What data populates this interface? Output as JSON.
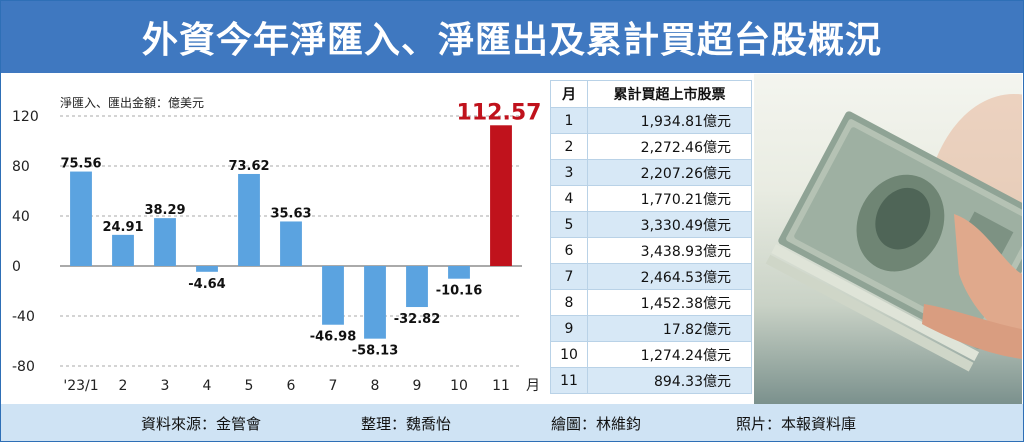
{
  "title": "外資今年淨匯入、淨匯出及累計買超台股概況",
  "chart_data": {
    "type": "bar",
    "unit_label": "淨匯入、匯出金額：億美元",
    "categories": [
      "'23/1",
      "2",
      "3",
      "4",
      "5",
      "6",
      "7",
      "8",
      "9",
      "10",
      "11"
    ],
    "x_suffix": "月",
    "values": [
      75.56,
      24.91,
      38.29,
      -4.64,
      73.62,
      35.63,
      -46.98,
      -58.13,
      -32.82,
      -10.16,
      112.57
    ],
    "value_labels": [
      "75.56",
      "24.91",
      "38.29",
      "-4.64",
      "73.62",
      "35.63",
      "-46.98",
      "-58.13",
      "-32.82",
      "-10.16",
      "112.57"
    ],
    "yticks": [
      120,
      80,
      40,
      0,
      -40,
      -80
    ],
    "ylim": [
      -80,
      120
    ],
    "grid": "dashed horizontal",
    "bar_color": "#5ba3e0",
    "highlight_color": "#c0121c",
    "highlight_index": 10
  },
  "table": {
    "headers": [
      "月",
      "累計買超上市股票"
    ],
    "rows": [
      {
        "month": "1",
        "value": "1,934.81億元"
      },
      {
        "month": "2",
        "value": "2,272.46億元"
      },
      {
        "month": "3",
        "value": "2,207.26億元"
      },
      {
        "month": "4",
        "value": "1,770.21億元"
      },
      {
        "month": "5",
        "value": "3,330.49億元"
      },
      {
        "month": "6",
        "value": "3,438.93億元"
      },
      {
        "month": "7",
        "value": "2,464.53億元"
      },
      {
        "month": "8",
        "value": "1,452.38億元"
      },
      {
        "month": "9",
        "value": "17.82億元"
      },
      {
        "month": "10",
        "value": "1,274.24億元"
      },
      {
        "month": "11",
        "value": "894.33億元"
      }
    ]
  },
  "photo": {
    "subject": "us-dollar-banknotes-photo"
  },
  "footer": {
    "source": "資料來源：金管會",
    "editor": "整理：魏喬怡",
    "artist": "繪圖：林維鈞",
    "photo_credit": "照片：本報資料庫"
  },
  "colors": {
    "banner": "#3f78c0",
    "footer": "#cfe3f4",
    "table_stripe": "#d7e8f6"
  }
}
